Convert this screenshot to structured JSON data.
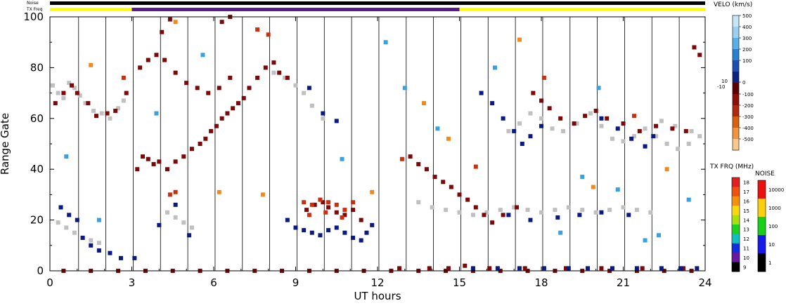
{
  "chart_data": {
    "type": "scatter",
    "header": {
      "noise_label": "Noise",
      "txfreq_label": "TX Freq"
    },
    "xlabel": "UT hours",
    "ylabel": "Range Gate",
    "xlim": [
      0,
      24
    ],
    "ylim": [
      0,
      100
    ],
    "x_ticks": [
      0,
      3,
      6,
      9,
      12,
      15,
      18,
      21,
      24
    ],
    "y_ticks": [
      0,
      20,
      40,
      60,
      80,
      100
    ],
    "scan_lines_hours": [
      1.05,
      2.05,
      3.05,
      4.05,
      5.05,
      6.05,
      7.05,
      8.05,
      9.05,
      10.05,
      11.05,
      12.05,
      13.05,
      14.05,
      15.05,
      16.05,
      17.05,
      18.05,
      19.05,
      20.05,
      21.05,
      22.05,
      23.05
    ],
    "txfreq_bar": [
      {
        "start": 0,
        "end": 3.0,
        "color": "#ffff00"
      },
      {
        "start": 3.0,
        "end": 15.0,
        "color": "#5a1a8c"
      },
      {
        "start": 15.0,
        "end": 24,
        "color": "#ffff00"
      }
    ],
    "noise_bar": [
      {
        "start": 0,
        "end": 24,
        "color": "#000000"
      }
    ],
    "velocity_scale": {
      "title": "VELO (km/s)",
      "ticks": [
        500,
        400,
        300,
        200,
        100,
        0,
        -100,
        -200,
        -300,
        -400,
        -500
      ],
      "side_labels": [
        "10",
        "-10"
      ],
      "colors": [
        "#c8e6f8",
        "#9ccff0",
        "#5ab0e6",
        "#2a80d0",
        "#1c4fb0",
        "#0c2480",
        "#5a0000",
        "#8a1008",
        "#b02a10",
        "#d86010",
        "#f09440",
        "#f8c890"
      ]
    },
    "txfreq_scale": {
      "title": "TX FRQ (MHz)",
      "ticks": [
        "18",
        "17",
        "16",
        "15",
        "14",
        "13",
        "12",
        "11",
        "10",
        "9"
      ],
      "colors": [
        "#e02020",
        "#f05010",
        "#f49010",
        "#f8d810",
        "#a8e010",
        "#20d020",
        "#10c0c0",
        "#1030e0",
        "#6a18a0",
        "#000000"
      ]
    },
    "noise_scale": {
      "title": "NOISE",
      "ticks": [
        "10000",
        "1000",
        "100",
        "10",
        "1"
      ],
      "colors": [
        "#e81010",
        "#f8d010",
        "#18d018",
        "#1818e8",
        "#000000"
      ]
    },
    "series": [
      {
        "color": "#c0c0c0",
        "points": [
          [
            0.1,
            73
          ],
          [
            0.3,
            70
          ],
          [
            0.5,
            68
          ],
          [
            0.7,
            74
          ],
          [
            0.9,
            72
          ],
          [
            1.1,
            69
          ],
          [
            1.3,
            66
          ],
          [
            1.6,
            63
          ],
          [
            1.9,
            62
          ],
          [
            2.2,
            60
          ],
          [
            2.5,
            64
          ],
          [
            2.7,
            67
          ],
          [
            0.3,
            19
          ],
          [
            0.6,
            17
          ],
          [
            0.9,
            15
          ],
          [
            1.2,
            13
          ],
          [
            1.5,
            12
          ],
          [
            1.8,
            11
          ],
          [
            4.3,
            23
          ],
          [
            4.6,
            21
          ],
          [
            4.9,
            19
          ],
          [
            5.2,
            17
          ],
          [
            8.2,
            78
          ],
          [
            8.6,
            76
          ],
          [
            9.0,
            73
          ],
          [
            9.3,
            70
          ],
          [
            9.6,
            65
          ],
          [
            10.0,
            60
          ],
          [
            13.5,
            27
          ],
          [
            14.0,
            25
          ],
          [
            14.5,
            24
          ],
          [
            15.0,
            23
          ],
          [
            15.5,
            22
          ],
          [
            16.0,
            23
          ],
          [
            16.5,
            24
          ],
          [
            17.0,
            25
          ],
          [
            17.5,
            24
          ],
          [
            18.0,
            23
          ],
          [
            18.5,
            24
          ],
          [
            19.0,
            25
          ],
          [
            19.5,
            24
          ],
          [
            20.0,
            23
          ],
          [
            20.5,
            24
          ],
          [
            21.0,
            25
          ],
          [
            21.5,
            24
          ],
          [
            22.0,
            23
          ],
          [
            16.8,
            55
          ],
          [
            17.2,
            58
          ],
          [
            17.6,
            62
          ],
          [
            18.0,
            60
          ],
          [
            18.4,
            56
          ],
          [
            18.8,
            55
          ],
          [
            19.3,
            58
          ],
          [
            19.8,
            62
          ],
          [
            20.2,
            57
          ],
          [
            20.6,
            52
          ],
          [
            21.0,
            51
          ],
          [
            21.4,
            53
          ],
          [
            21.8,
            56
          ],
          [
            22.2,
            53
          ],
          [
            22.6,
            50
          ],
          [
            23.0,
            48
          ],
          [
            23.4,
            50
          ],
          [
            23.8,
            53
          ],
          [
            22.4,
            59
          ],
          [
            22.9,
            57
          ],
          [
            23.5,
            55
          ]
        ]
      },
      {
        "color": "#7a0a0a",
        "points": [
          [
            0.2,
            66
          ],
          [
            0.5,
            70
          ],
          [
            0.8,
            73
          ],
          [
            1.0,
            70
          ],
          [
            1.4,
            66
          ],
          [
            1.7,
            61
          ],
          [
            2.1,
            62
          ],
          [
            2.4,
            63
          ],
          [
            2.8,
            70
          ],
          [
            3.2,
            40
          ],
          [
            3.4,
            45
          ],
          [
            3.6,
            44
          ],
          [
            3.8,
            42
          ],
          [
            4.0,
            43
          ],
          [
            4.3,
            40
          ],
          [
            4.6,
            43
          ],
          [
            4.9,
            45
          ],
          [
            5.2,
            48
          ],
          [
            5.5,
            50
          ],
          [
            5.7,
            52
          ],
          [
            5.9,
            55
          ],
          [
            6.1,
            57
          ],
          [
            6.3,
            60
          ],
          [
            6.5,
            62
          ],
          [
            6.7,
            64
          ],
          [
            6.9,
            66
          ],
          [
            7.1,
            68
          ],
          [
            7.3,
            72
          ],
          [
            7.6,
            76
          ],
          [
            7.9,
            80
          ],
          [
            8.2,
            82
          ],
          [
            8.4,
            78
          ],
          [
            8.7,
            76
          ],
          [
            3.3,
            80
          ],
          [
            3.6,
            83
          ],
          [
            3.9,
            85
          ],
          [
            4.2,
            83
          ],
          [
            4.6,
            78
          ],
          [
            5.0,
            74
          ],
          [
            5.4,
            72
          ],
          [
            5.8,
            70
          ],
          [
            6.2,
            72
          ],
          [
            6.6,
            76
          ],
          [
            4.1,
            94
          ],
          [
            4.4,
            99
          ],
          [
            6.3,
            98
          ],
          [
            6.6,
            100
          ],
          [
            10.2,
            25
          ],
          [
            10.5,
            23
          ],
          [
            10.8,
            22
          ],
          [
            11.1,
            24
          ],
          [
            11.4,
            20
          ],
          [
            9.4,
            24
          ],
          [
            9.7,
            26
          ],
          [
            10.0,
            27
          ],
          [
            13.2,
            45
          ],
          [
            13.5,
            42
          ],
          [
            13.8,
            40
          ],
          [
            14.1,
            37
          ],
          [
            14.4,
            35
          ],
          [
            14.7,
            33
          ],
          [
            15.0,
            30
          ],
          [
            15.3,
            28
          ],
          [
            15.6,
            25
          ],
          [
            15.9,
            22
          ],
          [
            16.2,
            19
          ],
          [
            16.6,
            22
          ],
          [
            17.1,
            25
          ],
          [
            17.7,
            70
          ],
          [
            18.0,
            67
          ],
          [
            18.3,
            64
          ],
          [
            18.7,
            60
          ],
          [
            19.2,
            58
          ],
          [
            19.6,
            61
          ],
          [
            20.0,
            63
          ],
          [
            20.4,
            60
          ],
          [
            21.0,
            58
          ],
          [
            21.6,
            55
          ],
          [
            22.2,
            57
          ],
          [
            22.8,
            56
          ],
          [
            23.3,
            55
          ],
          [
            23.6,
            88
          ],
          [
            23.8,
            85
          ],
          [
            0.5,
            0
          ],
          [
            1.5,
            0
          ],
          [
            2.5,
            0
          ],
          [
            3.5,
            0
          ],
          [
            4.5,
            0
          ],
          [
            5.5,
            0
          ],
          [
            6.5,
            0
          ],
          [
            7.5,
            0
          ],
          [
            8.5,
            0
          ],
          [
            9.5,
            0
          ],
          [
            10.5,
            0
          ],
          [
            11.5,
            0
          ],
          [
            12.5,
            0
          ],
          [
            13.5,
            0
          ],
          [
            14.5,
            0
          ],
          [
            15.5,
            0
          ],
          [
            16.5,
            0
          ],
          [
            17.5,
            0
          ],
          [
            18.5,
            0
          ],
          [
            19.5,
            0
          ],
          [
            20.5,
            0
          ],
          [
            21.5,
            0
          ],
          [
            22.5,
            0
          ],
          [
            23.5,
            0
          ],
          [
            12.8,
            1
          ],
          [
            13.9,
            1
          ],
          [
            14.6,
            1
          ],
          [
            15.2,
            2
          ],
          [
            16.1,
            1
          ],
          [
            17.4,
            1
          ],
          [
            18.9,
            1
          ],
          [
            20.2,
            1
          ],
          [
            21.7,
            1
          ],
          [
            23.2,
            1
          ]
        ]
      },
      {
        "color": "#0a1a80",
        "points": [
          [
            0.4,
            25
          ],
          [
            0.7,
            22
          ],
          [
            1.0,
            20
          ],
          [
            1.2,
            13
          ],
          [
            1.5,
            10
          ],
          [
            1.8,
            8
          ],
          [
            2.2,
            7
          ],
          [
            2.6,
            5
          ],
          [
            3.1,
            5
          ],
          [
            8.7,
            20
          ],
          [
            9.0,
            17
          ],
          [
            9.3,
            16
          ],
          [
            9.6,
            15
          ],
          [
            9.9,
            14
          ],
          [
            10.2,
            16
          ],
          [
            10.5,
            17
          ],
          [
            10.8,
            15
          ],
          [
            11.1,
            13
          ],
          [
            11.4,
            12
          ],
          [
            11.6,
            15
          ],
          [
            11.8,
            18
          ],
          [
            9.5,
            72
          ],
          [
            10.0,
            62
          ],
          [
            10.5,
            59
          ],
          [
            15.8,
            70
          ],
          [
            16.2,
            66
          ],
          [
            16.6,
            60
          ],
          [
            17.0,
            55
          ],
          [
            17.3,
            50
          ],
          [
            17.6,
            53
          ],
          [
            18.0,
            57
          ],
          [
            20.2,
            60
          ],
          [
            20.8,
            56
          ],
          [
            21.3,
            52
          ],
          [
            21.8,
            49
          ],
          [
            22.1,
            53
          ],
          [
            16.8,
            22
          ],
          [
            17.6,
            20
          ],
          [
            18.6,
            21
          ],
          [
            19.4,
            22
          ],
          [
            20.2,
            23
          ],
          [
            21.2,
            22
          ],
          [
            15.5,
            1
          ],
          [
            16.4,
            1
          ],
          [
            17.2,
            1
          ],
          [
            18.1,
            1
          ],
          [
            19.0,
            1
          ],
          [
            19.7,
            1
          ],
          [
            20.6,
            1
          ],
          [
            21.5,
            1
          ],
          [
            22.4,
            1
          ],
          [
            23.1,
            1
          ],
          [
            23.7,
            1
          ],
          [
            4.0,
            18
          ],
          [
            5.1,
            14
          ],
          [
            4.6,
            26
          ]
        ]
      },
      {
        "color": "#c83010",
        "points": [
          [
            9.3,
            27
          ],
          [
            9.6,
            26
          ],
          [
            9.9,
            28
          ],
          [
            10.2,
            27
          ],
          [
            10.5,
            26
          ],
          [
            10.8,
            24
          ],
          [
            11.1,
            27
          ],
          [
            9.5,
            22
          ],
          [
            10.1,
            23
          ],
          [
            10.7,
            21
          ],
          [
            2.7,
            76
          ],
          [
            4.4,
            30
          ],
          [
            4.6,
            31
          ],
          [
            8.0,
            93
          ],
          [
            12.9,
            44
          ],
          [
            15.6,
            41
          ],
          [
            18.1,
            76
          ],
          [
            21.4,
            61
          ],
          [
            7.6,
            95
          ]
        ]
      },
      {
        "color": "#3aa0e0",
        "points": [
          [
            0.6,
            45
          ],
          [
            1.8,
            20
          ],
          [
            5.6,
            85
          ],
          [
            10.7,
            44
          ],
          [
            13.0,
            72
          ],
          [
            16.3,
            80
          ],
          [
            18.7,
            15
          ],
          [
            19.5,
            37
          ],
          [
            20.8,
            32
          ],
          [
            22.3,
            14
          ],
          [
            23.4,
            28
          ],
          [
            14.2,
            56
          ],
          [
            3.9,
            62
          ],
          [
            12.3,
            90
          ],
          [
            20.1,
            72
          ],
          [
            21.8,
            12
          ]
        ]
      },
      {
        "color": "#f08a20",
        "points": [
          [
            1.5,
            81
          ],
          [
            4.6,
            98
          ],
          [
            7.8,
            30
          ],
          [
            11.8,
            31
          ],
          [
            14.6,
            52
          ],
          [
            17.2,
            91
          ],
          [
            19.9,
            33
          ],
          [
            22.6,
            40
          ],
          [
            6.2,
            31
          ],
          [
            13.7,
            66
          ]
        ]
      }
    ]
  }
}
